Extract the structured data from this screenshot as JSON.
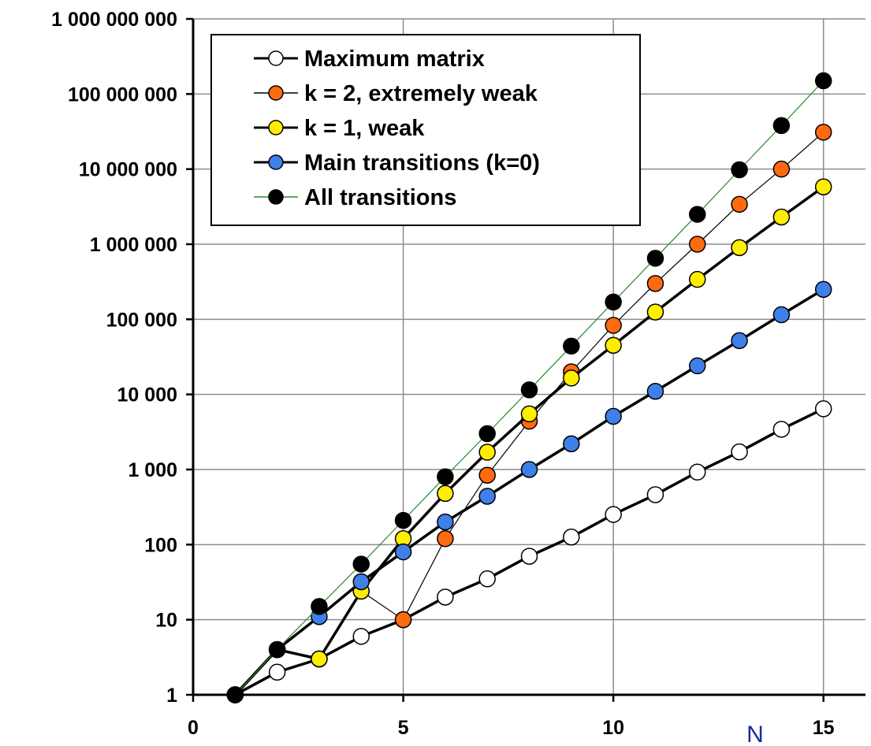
{
  "chart_data": {
    "type": "line",
    "y_scale": "log",
    "xlim": [
      0,
      16
    ],
    "ylim": [
      1,
      1000000000
    ],
    "grid": true,
    "legend_position": "top-left",
    "xlabel": "N",
    "ylabel": "",
    "title": "",
    "x_ticks": [
      {
        "value": 0,
        "label": "0"
      },
      {
        "value": 5,
        "label": "5"
      },
      {
        "value": 10,
        "label": "10"
      },
      {
        "value": 15,
        "label": "15"
      }
    ],
    "y_ticks": [
      {
        "value": 1,
        "label": "1"
      },
      {
        "value": 10,
        "label": "10"
      },
      {
        "value": 100,
        "label": "100"
      },
      {
        "value": 1000,
        "label": "1 000"
      },
      {
        "value": 10000,
        "label": "10 000"
      },
      {
        "value": 100000,
        "label": "100 000"
      },
      {
        "value": 1000000,
        "label": "1 000 000"
      },
      {
        "value": 10000000,
        "label": "10 000 000"
      },
      {
        "value": 100000000,
        "label": "100 000 000"
      },
      {
        "value": 1000000000,
        "label": "1 000 000 000"
      }
    ],
    "series": [
      {
        "name": "Maximum matrix",
        "marker_color": "#ffffff",
        "line_color": "#000000",
        "x": [
          1,
          2,
          3,
          4,
          5,
          6,
          7,
          8,
          9,
          10,
          11,
          12,
          13,
          14,
          15
        ],
        "y": [
          1,
          2,
          3,
          6,
          10,
          20,
          35,
          70,
          126,
          252,
          462,
          924,
          1716,
          3432,
          6435
        ]
      },
      {
        "name": "k = 2, extremely weak",
        "marker_color": "#ff6a10",
        "line_color": "#000000",
        "x": [
          1,
          2,
          3,
          4,
          5,
          6,
          7,
          8,
          9,
          10,
          11,
          12,
          13,
          14,
          15
        ],
        "y": [
          1,
          4,
          3,
          24,
          10,
          120,
          840,
          4400,
          20000,
          83000,
          300000,
          1000000,
          3400000,
          10000000,
          31000000
        ]
      },
      {
        "name": "k = 1, weak",
        "marker_color": "#ffee00",
        "line_color": "#000000",
        "x": [
          1,
          2,
          3,
          4,
          5,
          6,
          7,
          8,
          9,
          10,
          11,
          12,
          13,
          14,
          15
        ],
        "y": [
          1,
          4,
          3,
          24,
          120,
          480,
          1700,
          5500,
          16500,
          45000,
          125000,
          340000,
          900000,
          2300000,
          5800000
        ]
      },
      {
        "name": "Main transitions (k=0)",
        "marker_color": "#3f7fe8",
        "line_color": "#000000",
        "x": [
          1,
          2,
          3,
          4,
          5,
          6,
          7,
          8,
          9,
          10,
          11,
          12,
          13,
          14,
          15
        ],
        "y": [
          1,
          4,
          11,
          32,
          80,
          200,
          440,
          1000,
          2200,
          5100,
          11000,
          24000,
          52000,
          115000,
          250000
        ]
      },
      {
        "name": "All transitions",
        "marker_color": "#000000",
        "line_color": "#2a8a2a",
        "x": [
          1,
          2,
          3,
          4,
          5,
          6,
          7,
          8,
          9,
          10,
          11,
          12,
          13,
          14,
          15
        ],
        "y": [
          1,
          4,
          15,
          55,
          210,
          800,
          3000,
          11500,
          44000,
          170000,
          650000,
          2500000,
          9800000,
          38000000,
          150000000
        ]
      }
    ]
  }
}
